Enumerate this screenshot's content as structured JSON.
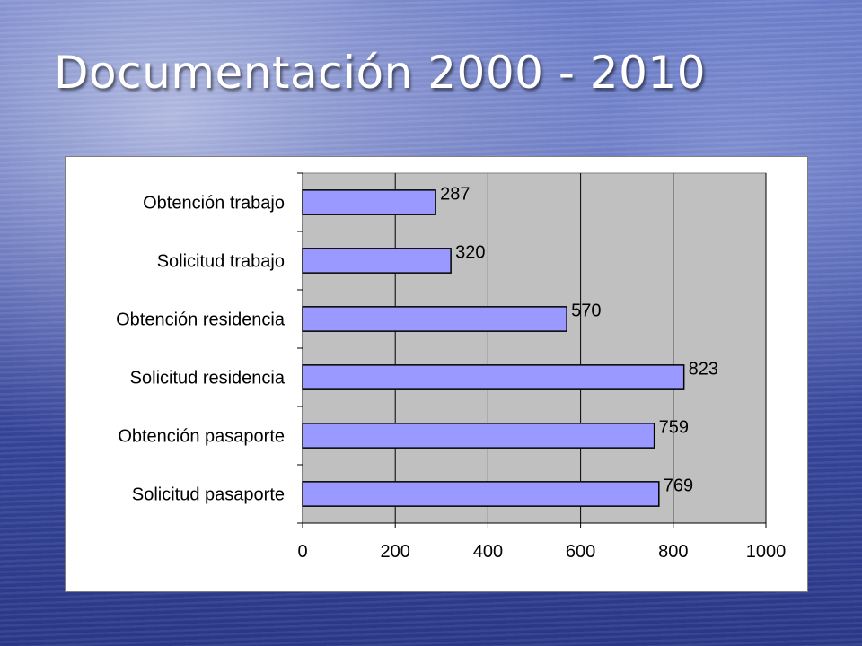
{
  "slide": {
    "title": "Documentación 2000 - 2010"
  },
  "colors": {
    "plot_area": "#c0c0c0",
    "bar_fill": "#9999ff",
    "bar_stroke": "#000000",
    "gridline": "#000000"
  },
  "chart_data": {
    "type": "bar",
    "orientation": "horizontal",
    "title": "",
    "xlabel": "",
    "ylabel": "",
    "categories": [
      "Obtención trabajo",
      "Solicitud trabajo",
      "Obtención residencia",
      "Solicitud residencia",
      "Obtención pasaporte",
      "Solicitud pasaporte"
    ],
    "values": [
      287,
      320,
      570,
      823,
      759,
      769
    ],
    "xlim": [
      0,
      1000
    ],
    "x_ticks": [
      "0",
      "200",
      "400",
      "600",
      "800",
      "1000"
    ],
    "grid": "vertical",
    "legend": "none",
    "data_labels": true
  }
}
